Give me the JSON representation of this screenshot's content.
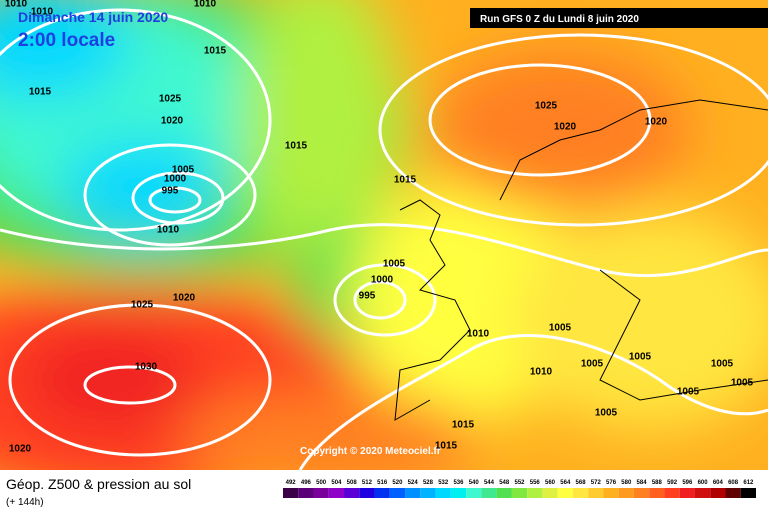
{
  "header": {
    "date": "Dimanche 14 juin 2020",
    "time": "2:00 locale",
    "run": "Run GFS 0 Z du Lundi 8 juin 2020"
  },
  "copyright": "Copyright © 2020 Meteociel.fr",
  "caption": {
    "title": "Géop. Z500 & pression au sol",
    "lead": "(+ 144h)"
  },
  "isobar_labels": [
    1010,
    1010,
    1010,
    1015,
    1015,
    1025,
    1020,
    1005,
    1000,
    995,
    1010,
    1015,
    1015,
    1025,
    1020,
    1020,
    1005,
    1000,
    995,
    1010,
    1005,
    1020,
    1025,
    1030,
    1010,
    1005,
    1005,
    1005,
    1005,
    1005,
    1005,
    1015,
    1020,
    1015
  ],
  "legend": {
    "levels": [
      492,
      496,
      500,
      504,
      508,
      512,
      516,
      520,
      524,
      528,
      532,
      536,
      540,
      544,
      548,
      552,
      556,
      560,
      564,
      568,
      572,
      576,
      580,
      584,
      588,
      592,
      596,
      600,
      604,
      608,
      612
    ],
    "colors": [
      "#3c0047",
      "#5c0079",
      "#7a009c",
      "#8f00c8",
      "#5a00d6",
      "#1e00e0",
      "#0030f0",
      "#0060ff",
      "#0090ff",
      "#00b4ff",
      "#00d8ff",
      "#00f0f0",
      "#40f8d0",
      "#40e890",
      "#50e050",
      "#80e840",
      "#b0f040",
      "#e0f040",
      "#ffff40",
      "#ffe640",
      "#ffcc30",
      "#ffb020",
      "#ff9a20",
      "#ff8020",
      "#ff6020",
      "#ff4020",
      "#f02020",
      "#d01010",
      "#b00000",
      "#600000",
      "#000000"
    ]
  }
}
